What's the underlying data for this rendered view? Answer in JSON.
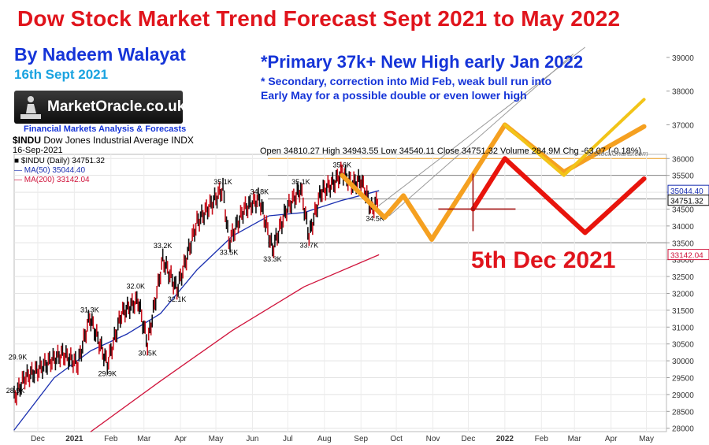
{
  "header": {
    "title": "Dow Stock Market Trend Forecast Sept 2021 to May 2022",
    "author": "By Nadeem Walayat",
    "date": "16th Sept 2021",
    "logo_text": "MarketOracle.co.uk",
    "tagline": "Financial Markets Analysis & Forecasts"
  },
  "notes": {
    "primary": "*Primary 37k+ New High early Jan 2022",
    "secondary_line1": "* Secondary, correction into Mid Feb, weak bull run into",
    "secondary_line2": "Early May for a possible double or even lower high",
    "forecast_date": "5th Dec 2021"
  },
  "chart_info": {
    "symbol": "$INDU",
    "name": "Dow Jones Industrial Average INDX",
    "chart_date": "16-Sep-2021",
    "ohlc_text": "Open 34810.27   High 34943.55   Low 34540.11   Close 34751.32   Volume 284.9M   Chg -63.07 (-0.18%)",
    "legend": [
      {
        "label": "■ $INDU (Daily) 34751.32",
        "color": "#000000"
      },
      {
        "label": "— MA(50) 35044.40",
        "color": "#1a2fb0"
      },
      {
        "label": "— MA(200) 33142.04",
        "color": "#d0143c"
      }
    ],
    "credit": "© StockCharts.com"
  },
  "colors": {
    "price_up": "#111111",
    "price_down": "#c8101c",
    "ma50": "#1a2fb0",
    "ma200": "#d0143c",
    "primary_forecast": "#f5a020",
    "secondary_forecast": "#f2c418",
    "red_forecast": "#e8140c"
  },
  "chart_data": {
    "type": "line",
    "title": "Dow Stock Market Trend Forecast Sept 2021 to May 2022",
    "xlabel": "",
    "ylabel": "",
    "x_tick_labels": [
      "Dec",
      "2021",
      "Feb",
      "Mar",
      "Apr",
      "May",
      "Jun",
      "Jul",
      "Aug",
      "Sep",
      "Oct",
      "Nov",
      "Dec",
      "2022",
      "Feb",
      "Mar",
      "Apr",
      "May"
    ],
    "x_ticks": [
      "2020-12-01",
      "2021-01-01",
      "2021-02-01",
      "2021-03-01",
      "2021-04-01",
      "2021-05-01",
      "2021-06-01",
      "2021-07-01",
      "2021-08-01",
      "2021-09-01",
      "2021-10-01",
      "2021-11-01",
      "2021-12-01",
      "2022-01-01",
      "2022-02-01",
      "2022-03-01",
      "2022-04-01",
      "2022-05-01"
    ],
    "y_ticks": [
      28000,
      28500,
      29000,
      29500,
      30000,
      30500,
      31000,
      31500,
      32000,
      32500,
      33000,
      33500,
      34000,
      34500,
      35000,
      35500,
      36000,
      37000,
      38000,
      39000
    ],
    "ylim": [
      27900,
      39300
    ],
    "series": [
      {
        "name": "$INDU (Daily)",
        "x": [
          "2020-11-11",
          "2020-11-20",
          "2020-11-30",
          "2020-12-10",
          "2020-12-22",
          "2021-01-04",
          "2021-01-14",
          "2021-01-29",
          "2021-02-10",
          "2021-02-24",
          "2021-03-04",
          "2021-03-17",
          "2021-03-29",
          "2021-04-15",
          "2021-05-07",
          "2021-05-12",
          "2021-05-25",
          "2021-06-07",
          "2021-06-18",
          "2021-06-30",
          "2021-07-12",
          "2021-07-19",
          "2021-07-29",
          "2021-08-10",
          "2021-08-16",
          "2021-08-24",
          "2021-09-01",
          "2021-09-10",
          "2021-09-16"
        ],
        "y": [
          28900,
          29500,
          29700,
          29950,
          30200,
          29900,
          31300,
          29900,
          31400,
          31800,
          30500,
          33000,
          32100,
          34100,
          35100,
          33500,
          34500,
          34800,
          33300,
          34500,
          35100,
          33700,
          35000,
          35300,
          35600,
          35250,
          35350,
          34500,
          34751
        ]
      },
      {
        "name": "MA(50)",
        "x": [
          "2020-11-11",
          "2020-12-15",
          "2021-01-15",
          "2021-02-15",
          "2021-03-15",
          "2021-04-15",
          "2021-05-15",
          "2021-06-15",
          "2021-07-15",
          "2021-08-15",
          "2021-09-16"
        ],
        "y": [
          27950,
          29500,
          30300,
          30800,
          31400,
          32700,
          33700,
          34300,
          34400,
          34750,
          35044
        ]
      },
      {
        "name": "MA(200)",
        "x": [
          "2021-01-15",
          "2021-03-15",
          "2021-05-15",
          "2021-07-15",
          "2021-09-16"
        ],
        "y": [
          27900,
          29400,
          30900,
          32200,
          33142
        ]
      }
    ],
    "forecasts": [
      {
        "name": "Primary",
        "x": [
          "2021-08-16",
          "2021-09-21",
          "2021-10-07",
          "2021-10-31",
          "2022-01-01",
          "2022-02-20",
          "2022-04-29"
        ],
        "y": [
          35500,
          34250,
          34900,
          33600,
          37000,
          35600,
          36950
        ]
      },
      {
        "name": "Secondary",
        "x": [
          "2022-01-01",
          "2022-02-20",
          "2022-04-29"
        ],
        "y": [
          37000,
          35500,
          37750
        ]
      },
      {
        "name": "5th Dec 2021",
        "x": [
          "2021-12-05",
          "2022-01-01",
          "2022-03-10",
          "2022-04-29"
        ],
        "y": [
          34500,
          36000,
          33800,
          35400
        ]
      }
    ],
    "annotations": [
      {
        "text": "29.9K",
        "x": "2020-11-14",
        "y": 29900
      },
      {
        "text": "28.9K",
        "x": "2020-11-12",
        "y": 28900
      },
      {
        "text": "31.3K",
        "x": "2021-01-14",
        "y": 31300
      },
      {
        "text": "29.9K",
        "x": "2021-01-29",
        "y": 29900
      },
      {
        "text": "32.0K",
        "x": "2021-02-22",
        "y": 32000
      },
      {
        "text": "30.5K",
        "x": "2021-03-04",
        "y": 30500
      },
      {
        "text": "33.2K",
        "x": "2021-03-17",
        "y": 33200
      },
      {
        "text": "32.1K",
        "x": "2021-03-29",
        "y": 32100
      },
      {
        "text": "35.1K",
        "x": "2021-05-07",
        "y": 35100
      },
      {
        "text": "33.5K",
        "x": "2021-05-12",
        "y": 33500
      },
      {
        "text": "34.8K",
        "x": "2021-06-07",
        "y": 34800
      },
      {
        "text": "33.3K",
        "x": "2021-06-18",
        "y": 33300
      },
      {
        "text": "35.1K",
        "x": "2021-07-12",
        "y": 35100
      },
      {
        "text": "33.7K",
        "x": "2021-07-19",
        "y": 33700
      },
      {
        "text": "35.6K",
        "x": "2021-08-16",
        "y": 35600
      },
      {
        "text": "34.5K",
        "x": "2021-09-13",
        "y": 34500
      }
    ],
    "right_axis_labels": [
      {
        "text": "35044.40",
        "y": 35044,
        "color": "#1a2fb0"
      },
      {
        "text": "34751.32",
        "y": 34751,
        "color": "#000000"
      },
      {
        "text": "33142.04",
        "y": 33142,
        "color": "#d0143c"
      }
    ],
    "grid": true
  }
}
